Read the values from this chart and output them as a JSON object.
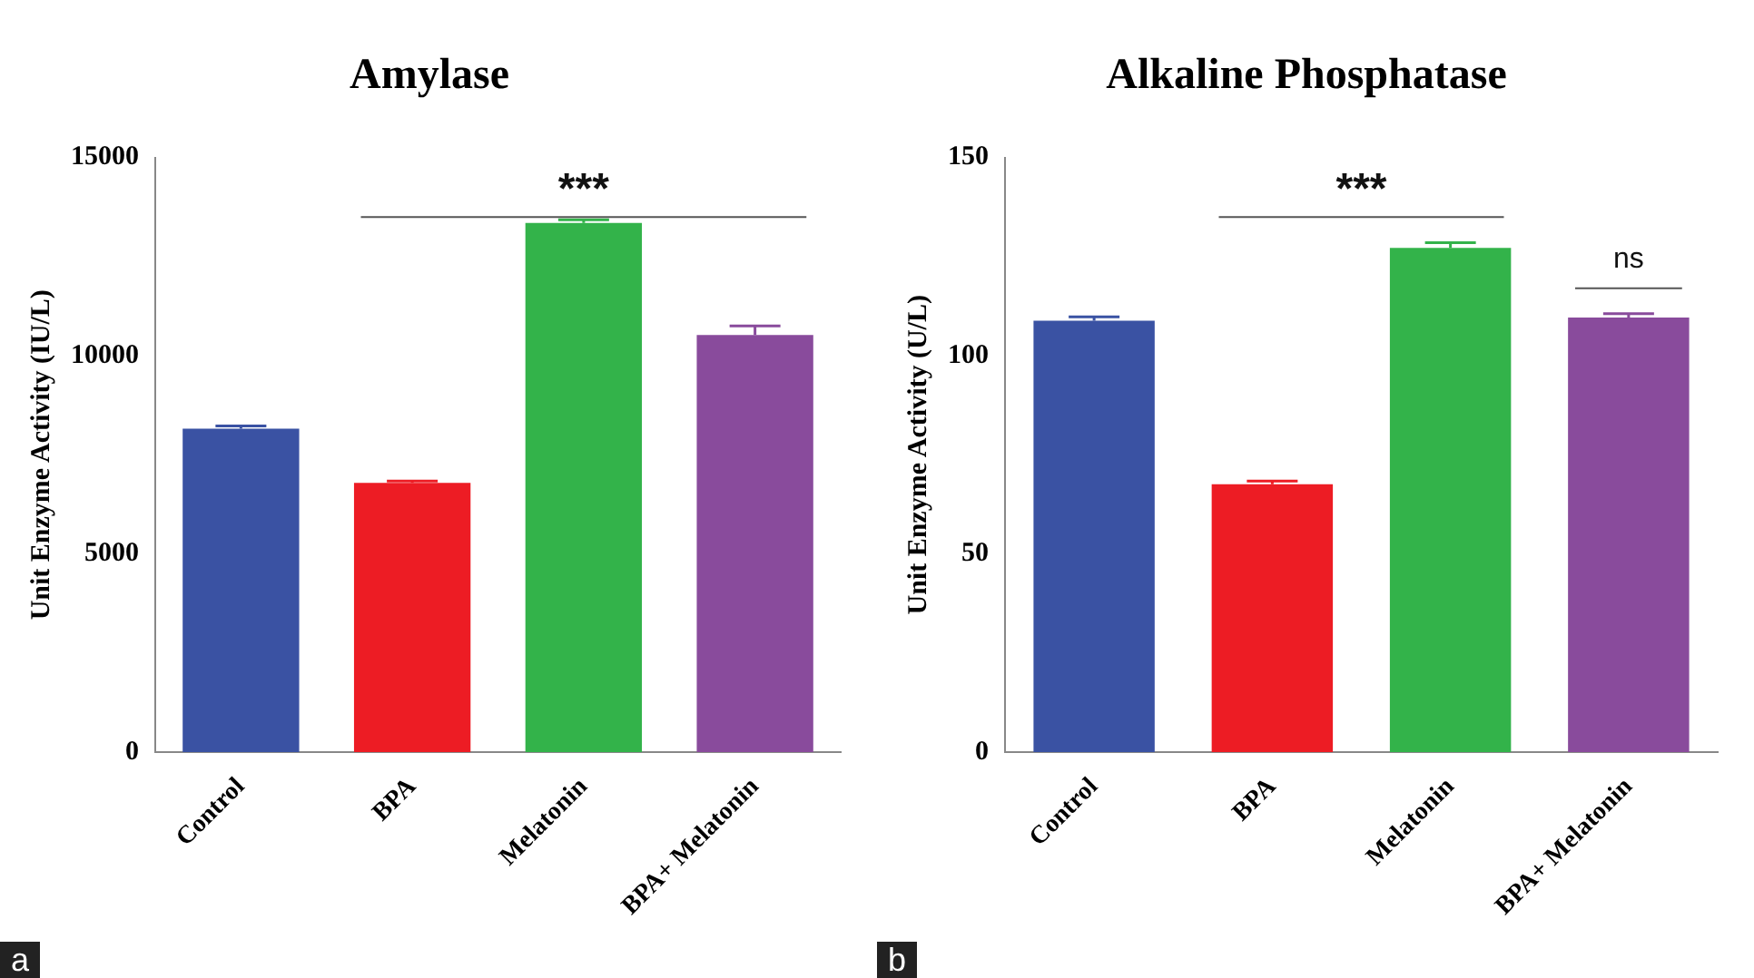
{
  "chart_data": [
    {
      "type": "bar",
      "title": "Amylase",
      "ylabel": "Unit Enzyme Activity (IU/L)",
      "categories": [
        "Control",
        "BPA",
        "Melatonin",
        "BPA+ Melatonin"
      ],
      "values": [
        8160,
        6790,
        13350,
        10520
      ],
      "errors": [
        70,
        50,
        80,
        230
      ],
      "colors": [
        "#3a52a3",
        "#ed1c24",
        "#33b34a",
        "#894b9c"
      ],
      "ylim": [
        0,
        15000
      ],
      "yticks": [
        0,
        5000,
        10000,
        15000
      ],
      "grid": false,
      "annotations": [
        "***",
        "a"
      ]
    },
    {
      "type": "bar",
      "title": "Alkaline Phosphatase",
      "ylabel": "Unit Enzyme Activity (U/L)",
      "categories": [
        "Control",
        "BPA",
        "Melatonin",
        "BPA+ Melatonin"
      ],
      "values": [
        108.8,
        67.6,
        127.2,
        109.6
      ],
      "errors": [
        1,
        0.8,
        1.3,
        1
      ],
      "colors": [
        "#3a52a3",
        "#ed1c24",
        "#33b34a",
        "#894b9c"
      ],
      "ylim": [
        0,
        150
      ],
      "yticks": [
        0,
        50,
        100,
        150
      ],
      "grid": false,
      "annotations": [
        "***",
        "ns",
        "b"
      ]
    }
  ]
}
